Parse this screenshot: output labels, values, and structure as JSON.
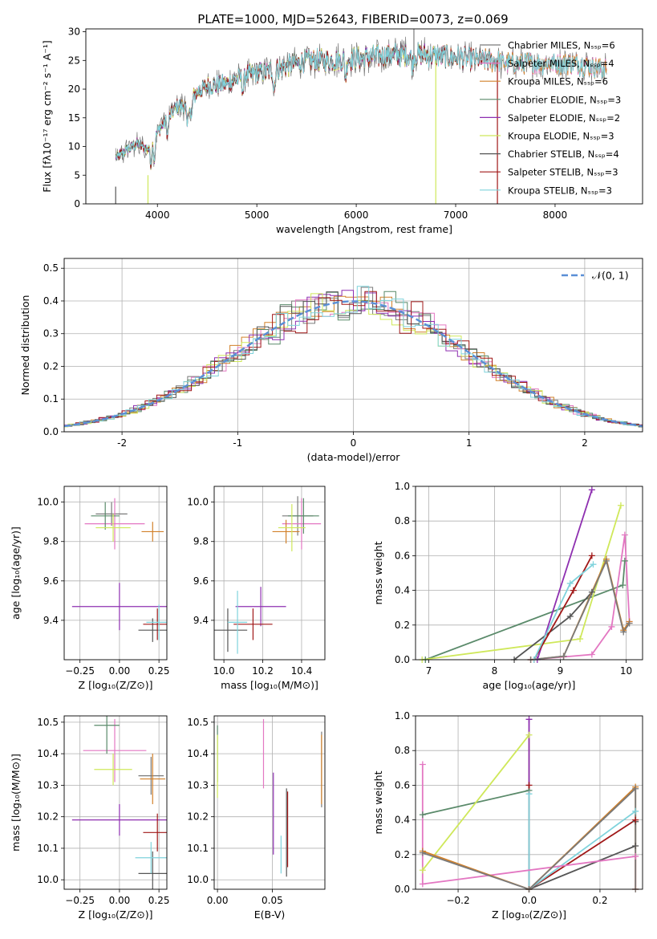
{
  "figure": {
    "title": "PLATE=1000, MJD=52643, FIBERID=0073, z=0.069"
  },
  "colors": {
    "Chabrier MILES": "#7a7a7a",
    "Salpeter MILES": "#e377c2",
    "Kroupa MILES": "#d2812a",
    "Chabrier ELODIE": "#5a8a6a",
    "Salpeter ELODIE": "#8e2fb0",
    "Kroupa ELODIE": "#cfe85a",
    "Chabrier STELIB": "#555555",
    "Salpeter STELIB": "#a01818",
    "Kroupa STELIB": "#7fd3dc"
  },
  "chart_data": [
    {
      "id": "spectrum",
      "type": "line",
      "xlabel": "wavelength [Angstrom, rest frame]",
      "ylabel": "Flux [fλ10⁻¹⁷ erg cm⁻² s⁻¹ A⁻¹]",
      "xlim": [
        3280,
        8880
      ],
      "ylim": [
        0,
        30.5
      ],
      "xticks": [
        4000,
        5000,
        6000,
        7000,
        8000
      ],
      "yticks": [
        0,
        5,
        10,
        15,
        20,
        25,
        30
      ],
      "legend": "top-right",
      "series": [
        {
          "name": "Chabrier MILES, Nₛₛₚ=6",
          "key": "Chabrier MILES"
        },
        {
          "name": "Salpeter MILES, Nₛₛₚ=4",
          "key": "Salpeter MILES"
        },
        {
          "name": "Kroupa MILES, Nₛₛₚ=6",
          "key": "Kroupa MILES"
        },
        {
          "name": "Chabrier ELODIE, Nₛₛₚ=3",
          "key": "Chabrier ELODIE"
        },
        {
          "name": "Salpeter ELODIE, Nₛₛₚ=2",
          "key": "Salpeter ELODIE"
        },
        {
          "name": "Kroupa ELODIE, Nₛₛₚ=3",
          "key": "Kroupa ELODIE"
        },
        {
          "name": "Chabrier STELIB, Nₛₛₚ=4",
          "key": "Chabrier STELIB"
        },
        {
          "name": "Salpeter STELIB, Nₛₛₚ=3",
          "key": "Salpeter STELIB"
        },
        {
          "name": "Kroupa STELIB, Nₛₛₚ=3",
          "key": "Kroupa STELIB"
        }
      ],
      "continuum": {
        "x": [
          3580,
          3700,
          3800,
          3900,
          4000,
          4100,
          4200,
          4300,
          4400,
          4500,
          4700,
          4900,
          5100,
          5300,
          5500,
          5800,
          6100,
          6400,
          6700,
          7000,
          7300,
          7600,
          7900,
          8200,
          8500
        ],
        "y": [
          8,
          9.5,
          10.5,
          9.5,
          12.5,
          15,
          17,
          17,
          19.5,
          20.5,
          21,
          22.5,
          23,
          24,
          25,
          25,
          25.5,
          26,
          26,
          25.5,
          25,
          24.5,
          24.5,
          24.5,
          23.5
        ]
      }
    },
    {
      "id": "residual-hist",
      "type": "histogram",
      "xlabel": "(data-model)/error",
      "ylabel": "Normed distribution",
      "xlim": [
        -2.5,
        2.5
      ],
      "ylim": [
        0,
        0.53
      ],
      "xticks": [
        -2,
        -1,
        0,
        1,
        2
      ],
      "yticks": [
        0.0,
        0.1,
        0.2,
        0.3,
        0.4,
        0.5
      ],
      "legend": "top-right",
      "reference_label": "𝒩(0, 1)",
      "reference": {
        "mu": 0,
        "sigma": 1
      }
    },
    {
      "id": "age-vs-Z",
      "type": "errorbar",
      "xlabel": "Z [log₁₀(Z/Z⊙)]",
      "ylabel": "age  [log₁₀(age/yr)]",
      "xlim": [
        -0.35,
        0.3
      ],
      "ylim": [
        9.2,
        10.08
      ],
      "xticks": [
        -0.25,
        0.0,
        0.25
      ],
      "yticks": [
        9.4,
        9.6,
        9.8,
        10.0
      ],
      "points": [
        {
          "key": "Chabrier MILES",
          "x": -0.05,
          "xerr": 0.1,
          "y": 9.94,
          "yerr": 0.06
        },
        {
          "key": "Salpeter MILES",
          "x": -0.03,
          "xerr": 0.19,
          "y": 9.89,
          "yerr": 0.13
        },
        {
          "key": "Kroupa MILES",
          "x": 0.21,
          "xerr": 0.07,
          "y": 9.85,
          "yerr": 0.05
        },
        {
          "key": "Chabrier ELODIE",
          "x": -0.09,
          "xerr": 0.09,
          "y": 9.93,
          "yerr": 0.07
        },
        {
          "key": "Salpeter ELODIE",
          "x": 0.0,
          "xerr": 0.3,
          "y": 9.47,
          "yerr": 0.12
        },
        {
          "key": "Kroupa ELODIE",
          "x": -0.04,
          "xerr": 0.11,
          "y": 9.87,
          "yerr": 0.07
        },
        {
          "key": "Chabrier STELIB",
          "x": 0.21,
          "xerr": 0.09,
          "y": 9.35,
          "yerr": 0.06
        },
        {
          "key": "Salpeter STELIB",
          "x": 0.24,
          "xerr": 0.09,
          "y": 9.38,
          "yerr": 0.08
        },
        {
          "key": "Kroupa STELIB",
          "x": 0.25,
          "xerr": 0.08,
          "y": 9.39,
          "yerr": 0.09
        }
      ]
    },
    {
      "id": "age-vs-mass",
      "type": "errorbar",
      "xlabel": "mass [log₁₀(M/M⊙)]",
      "ylabel": "",
      "xlim": [
        9.95,
        10.52
      ],
      "ylim": [
        9.2,
        10.08
      ],
      "xticks": [
        10.0,
        10.2,
        10.4
      ],
      "yticks": [
        9.4,
        9.6,
        9.8,
        10.0
      ],
      "points": [
        {
          "key": "Chabrier MILES",
          "x": 10.38,
          "xerr": 0.08,
          "y": 9.93,
          "yerr": 0.1
        },
        {
          "key": "Salpeter MILES",
          "x": 10.4,
          "xerr": 0.1,
          "y": 9.89,
          "yerr": 0.13
        },
        {
          "key": "Kroupa MILES",
          "x": 10.32,
          "xerr": 0.07,
          "y": 9.85,
          "yerr": 0.06
        },
        {
          "key": "Chabrier ELODIE",
          "x": 10.41,
          "xerr": 0.08,
          "y": 9.93,
          "yerr": 0.09
        },
        {
          "key": "Salpeter ELODIE",
          "x": 10.19,
          "xerr": 0.13,
          "y": 9.47,
          "yerr": 0.1
        },
        {
          "key": "Kroupa ELODIE",
          "x": 10.35,
          "xerr": 0.07,
          "y": 9.87,
          "yerr": 0.12
        },
        {
          "key": "Chabrier STELIB",
          "x": 10.02,
          "xerr": 0.1,
          "y": 9.35,
          "yerr": 0.11
        },
        {
          "key": "Salpeter STELIB",
          "x": 10.15,
          "xerr": 0.1,
          "y": 9.38,
          "yerr": 0.08
        },
        {
          "key": "Kroupa STELIB",
          "x": 10.07,
          "xerr": 0.05,
          "y": 9.39,
          "yerr": 0.16
        }
      ]
    },
    {
      "id": "weight-vs-age",
      "type": "line",
      "xlabel": "age  [log₁₀(age/yr)]",
      "ylabel": "mass weight",
      "xlim": [
        6.8,
        10.25
      ],
      "ylim": [
        0,
        1.0
      ],
      "xticks": [
        7,
        8,
        9,
        10
      ],
      "yticks": [
        0.0,
        0.2,
        0.4,
        0.6,
        0.8,
        1.0
      ],
      "series": [
        {
          "key": "Chabrier ELODIE",
          "x": [
            6.95,
            9.95,
            9.98
          ],
          "y": [
            0.0,
            0.43,
            0.57
          ]
        },
        {
          "key": "Kroupa ELODIE",
          "x": [
            6.9,
            9.3,
            9.92
          ],
          "y": [
            0.0,
            0.12,
            0.89
          ]
        },
        {
          "key": "Salpeter ELODIE",
          "x": [
            8.65,
            9.48
          ],
          "y": [
            0.0,
            0.98
          ]
        },
        {
          "key": "Chabrier STELIB",
          "x": [
            8.3,
            9.15,
            9.48
          ],
          "y": [
            0.0,
            0.25,
            0.39
          ]
        },
        {
          "key": "Salpeter STELIB",
          "x": [
            8.6,
            9.2,
            9.48
          ],
          "y": [
            0.0,
            0.4,
            0.6
          ]
        },
        {
          "key": "Kroupa STELIB",
          "x": [
            8.6,
            9.15,
            9.5
          ],
          "y": [
            0.0,
            0.44,
            0.55
          ]
        },
        {
          "key": "Salpeter MILES",
          "x": [
            8.55,
            9.48,
            9.78,
            9.98,
            10.05
          ],
          "y": [
            0.0,
            0.03,
            0.19,
            0.72,
            0.22
          ]
        },
        {
          "key": "Kroupa MILES",
          "x": [
            8.55,
            9.05,
            9.7,
            9.96,
            10.05
          ],
          "y": [
            0.0,
            0.02,
            0.58,
            0.17,
            0.22
          ]
        },
        {
          "key": "Chabrier MILES",
          "x": [
            8.55,
            9.05,
            9.7,
            9.96,
            10.05
          ],
          "y": [
            0.0,
            0.02,
            0.57,
            0.16,
            0.21
          ]
        }
      ]
    },
    {
      "id": "mass-vs-Z",
      "type": "errorbar",
      "xlabel": "Z [log₁₀(Z/Z⊙)]",
      "ylabel": "mass [log₁₀(M/M⊙)]",
      "xlim": [
        -0.35,
        0.3
      ],
      "ylim": [
        9.97,
        10.52
      ],
      "xticks": [
        -0.25,
        0.0,
        0.25
      ],
      "yticks": [
        10.0,
        10.1,
        10.2,
        10.3,
        10.4,
        10.5
      ],
      "points": [
        {
          "key": "Chabrier MILES",
          "x": 0.2,
          "xerr": 0.08,
          "y": 10.33,
          "yerr": 0.06
        },
        {
          "key": "Salpeter MILES",
          "x": -0.03,
          "xerr": 0.2,
          "y": 10.41,
          "yerr": 0.1
        },
        {
          "key": "Kroupa MILES",
          "x": 0.21,
          "xerr": 0.08,
          "y": 10.32,
          "yerr": 0.08
        },
        {
          "key": "Chabrier ELODIE",
          "x": -0.08,
          "xerr": 0.08,
          "y": 10.49,
          "yerr": 0.09
        },
        {
          "key": "Salpeter ELODIE",
          "x": 0.0,
          "xerr": 0.3,
          "y": 10.19,
          "yerr": 0.05
        },
        {
          "key": "Kroupa ELODIE",
          "x": -0.04,
          "xerr": 0.12,
          "y": 10.35,
          "yerr": 0.05
        },
        {
          "key": "Chabrier STELIB",
          "x": 0.21,
          "xerr": 0.09,
          "y": 10.02,
          "yerr": 0.07
        },
        {
          "key": "Salpeter STELIB",
          "x": 0.24,
          "xerr": 0.09,
          "y": 10.15,
          "yerr": 0.06
        },
        {
          "key": "Kroupa STELIB",
          "x": 0.2,
          "xerr": 0.1,
          "y": 10.07,
          "yerr": 0.05
        }
      ]
    },
    {
      "id": "mass-vs-ebv",
      "type": "errorbar",
      "xlabel": "E(B-V)",
      "ylabel": "",
      "xlim": [
        -0.003,
        0.098
      ],
      "ylim": [
        9.97,
        10.52
      ],
      "xticks": [
        0.0,
        0.05
      ],
      "yticks": [
        10.0,
        10.1,
        10.2,
        10.3,
        10.4,
        10.5
      ],
      "points": [
        {
          "key": "Chabrier MILES",
          "x": 0.095,
          "y": 10.35,
          "yerr": 0.12
        },
        {
          "key": "Salpeter MILES",
          "x": 0.042,
          "y": 10.4,
          "yerr": 0.11
        },
        {
          "key": "Kroupa MILES",
          "x": 0.095,
          "y": 10.35,
          "yerr": 0.11
        },
        {
          "key": "Chabrier ELODIE",
          "x": 0.0,
          "y": 10.4,
          "yerr": 0.09
        },
        {
          "key": "Salpeter ELODIE",
          "x": 0.051,
          "y": 10.21,
          "yerr": 0.13
        },
        {
          "key": "Kroupa ELODIE",
          "x": 0.0,
          "y": 10.36,
          "yerr": 0.1
        },
        {
          "key": "Chabrier STELIB",
          "x": 0.063,
          "y": 10.15,
          "yerr": 0.14
        },
        {
          "key": "Salpeter STELIB",
          "x": 0.064,
          "y": 10.16,
          "yerr": 0.12
        },
        {
          "key": "Kroupa STELIB",
          "x": 0.058,
          "y": 10.08,
          "yerr": 0.06
        }
      ]
    },
    {
      "id": "weight-vs-Z",
      "type": "line",
      "xlabel": "Z [log₁₀(Z/Z⊙)]",
      "ylabel": "mass weight",
      "xlim": [
        -0.32,
        0.32
      ],
      "ylim": [
        0,
        1.0
      ],
      "xticks": [
        -0.2,
        0.0,
        0.2
      ],
      "yticks": [
        0.0,
        0.2,
        0.4,
        0.6,
        0.8,
        1.0
      ],
      "series": [
        {
          "key": "Chabrier ELODIE",
          "x": [
            -0.3,
            0.0
          ],
          "y": [
            0.43,
            0.57
          ]
        },
        {
          "key": "Kroupa ELODIE",
          "x": [
            -0.3,
            0.0,
            0.0
          ],
          "y": [
            0.11,
            0.89,
            0.0
          ]
        },
        {
          "key": "Salpeter ELODIE",
          "x": [
            0.0,
            0.0
          ],
          "y": [
            0.0,
            0.98
          ]
        },
        {
          "key": "Chabrier STELIB",
          "x": [
            0.0,
            0.3,
            0.3
          ],
          "y": [
            0.0,
            0.25,
            0.39
          ]
        },
        {
          "key": "Salpeter STELIB",
          "x": [
            0.0,
            0.0,
            0.3
          ],
          "y": [
            0.6,
            0.0,
            0.4
          ]
        },
        {
          "key": "Kroupa STELIB",
          "x": [
            0.0,
            0.0,
            0.3
          ],
          "y": [
            0.55,
            0.0,
            0.45
          ]
        },
        {
          "key": "Salpeter MILES",
          "x": [
            -0.3,
            -0.3,
            0.3,
            0.3
          ],
          "y": [
            0.72,
            0.03,
            0.19,
            0.0
          ]
        },
        {
          "key": "Kroupa MILES",
          "x": [
            -0.3,
            0.0,
            0.3,
            0.3
          ],
          "y": [
            0.22,
            0.0,
            0.59,
            0.0
          ]
        },
        {
          "key": "Chabrier MILES",
          "x": [
            -0.3,
            0.0,
            0.3,
            0.3
          ],
          "y": [
            0.21,
            0.0,
            0.58,
            0.0
          ]
        }
      ]
    }
  ]
}
